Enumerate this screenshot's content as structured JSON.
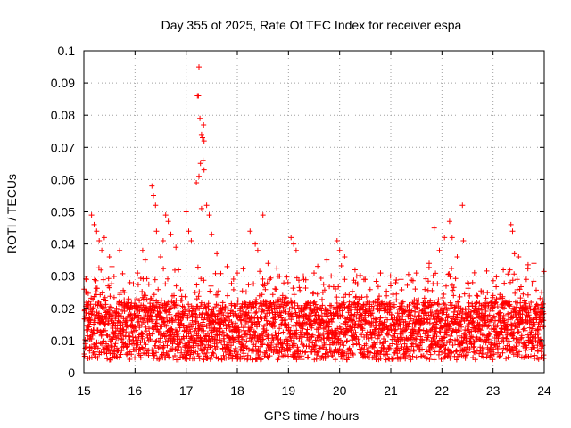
{
  "chart_data": {
    "type": "scatter",
    "title": "Day 355 of 2025, Rate Of TEC Index for receiver espa",
    "xlabel": "GPS time / hours",
    "ylabel": "ROTI / TECUs",
    "xlim": [
      15,
      24
    ],
    "ylim": [
      0,
      0.1
    ],
    "x_ticks": [
      "15",
      "16",
      "17",
      "18",
      "19",
      "20",
      "21",
      "22",
      "23",
      "24"
    ],
    "y_ticks": [
      "0",
      "0.01",
      "0.02",
      "0.03",
      "0.04",
      "0.05",
      "0.06",
      "0.07",
      "0.08",
      "0.09",
      "0.1"
    ],
    "grid": true,
    "marker": "+",
    "color": "#ff0000",
    "series": [
      {
        "name": "ROTI",
        "points": [
          [
            15.05,
            0.029
          ],
          [
            15.1,
            0.022
          ],
          [
            15.15,
            0.049
          ],
          [
            15.2,
            0.046
          ],
          [
            15.25,
            0.044
          ],
          [
            15.3,
            0.041
          ],
          [
            15.35,
            0.038
          ],
          [
            15.4,
            0.042
          ],
          [
            15.5,
            0.036
          ],
          [
            15.55,
            0.033
          ],
          [
            15.7,
            0.038
          ],
          [
            15.9,
            0.028
          ],
          [
            16.05,
            0.031
          ],
          [
            16.15,
            0.038
          ],
          [
            16.2,
            0.035
          ],
          [
            16.33,
            0.058
          ],
          [
            16.36,
            0.055
          ],
          [
            16.4,
            0.052
          ],
          [
            16.42,
            0.044
          ],
          [
            16.5,
            0.036
          ],
          [
            16.55,
            0.041
          ],
          [
            16.6,
            0.049
          ],
          [
            16.65,
            0.047
          ],
          [
            16.7,
            0.043
          ],
          [
            16.8,
            0.039
          ],
          [
            16.85,
            0.032
          ],
          [
            17.0,
            0.05
          ],
          [
            17.05,
            0.044
          ],
          [
            17.1,
            0.041
          ],
          [
            17.22,
            0.086
          ],
          [
            17.24,
            0.086
          ],
          [
            17.25,
            0.095
          ],
          [
            17.27,
            0.079
          ],
          [
            17.3,
            0.074
          ],
          [
            17.32,
            0.073
          ],
          [
            17.34,
            0.077
          ],
          [
            17.35,
            0.072
          ],
          [
            17.2,
            0.059
          ],
          [
            17.25,
            0.061
          ],
          [
            17.28,
            0.065
          ],
          [
            17.33,
            0.066
          ],
          [
            17.35,
            0.063
          ],
          [
            17.4,
            0.052
          ],
          [
            17.45,
            0.049
          ],
          [
            17.3,
            0.051
          ],
          [
            17.5,
            0.043
          ],
          [
            17.6,
            0.037
          ],
          [
            17.8,
            0.033
          ],
          [
            18.0,
            0.031
          ],
          [
            18.25,
            0.044
          ],
          [
            18.35,
            0.04
          ],
          [
            18.4,
            0.038
          ],
          [
            18.5,
            0.049
          ],
          [
            18.6,
            0.034
          ],
          [
            18.8,
            0.03
          ],
          [
            19.05,
            0.042
          ],
          [
            19.1,
            0.04
          ],
          [
            19.15,
            0.038
          ],
          [
            19.3,
            0.029
          ],
          [
            19.5,
            0.031
          ],
          [
            19.75,
            0.035
          ],
          [
            19.95,
            0.041
          ],
          [
            20.0,
            0.038
          ],
          [
            20.1,
            0.036
          ],
          [
            20.3,
            0.032
          ],
          [
            20.5,
            0.029
          ],
          [
            20.8,
            0.031
          ],
          [
            21.0,
            0.027
          ],
          [
            21.2,
            0.029
          ],
          [
            21.5,
            0.031
          ],
          [
            21.75,
            0.034
          ],
          [
            21.85,
            0.045
          ],
          [
            21.95,
            0.038
          ],
          [
            22.05,
            0.042
          ],
          [
            22.15,
            0.047
          ],
          [
            22.2,
            0.042
          ],
          [
            22.3,
            0.036
          ],
          [
            22.4,
            0.052
          ],
          [
            22.42,
            0.041
          ],
          [
            22.6,
            0.028
          ],
          [
            22.8,
            0.025
          ],
          [
            23.0,
            0.024
          ],
          [
            23.2,
            0.032
          ],
          [
            23.35,
            0.046
          ],
          [
            23.38,
            0.044
          ],
          [
            23.42,
            0.037
          ],
          [
            23.5,
            0.036
          ],
          [
            23.65,
            0.029
          ],
          [
            23.8,
            0.034
          ],
          [
            23.95,
            0.025
          ]
        ]
      }
    ]
  }
}
